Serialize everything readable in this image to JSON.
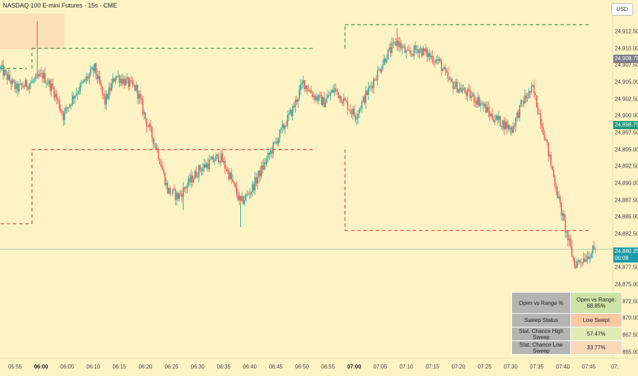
{
  "header": {
    "title": "NASDAQ 100 E-mini Futures · 15s · CME",
    "currency_button": "USD"
  },
  "price_axis": {
    "ticks": [
      "24,912.50",
      "24,910.00",
      "24,907.50",
      "24,905.00",
      "24,902.50",
      "24,900.00",
      "24,897.50",
      "24,895.00",
      "24,892.50",
      "24,890.00",
      "24,887.50",
      "24,885.00",
      "24,882.50",
      "24,877.50",
      "24,875.00",
      "24,872.50",
      "24,870.00",
      "24,867.50",
      "24,865.00"
    ],
    "last_price_label": "24,908.75",
    "green_label": "24,898.75",
    "current_price_label": "24,880.25",
    "countdown_label": "00:08",
    "colors": {
      "last": "#7c7c86",
      "green": "#1f9a7a",
      "current": "#1b9aa7"
    }
  },
  "time_axis": {
    "ticks": [
      {
        "label": "05:55",
        "bold": false
      },
      {
        "label": "06:00",
        "bold": true
      },
      {
        "label": "06:05",
        "bold": false
      },
      {
        "label": "06:10",
        "bold": false
      },
      {
        "label": "06:15",
        "bold": false
      },
      {
        "label": "06:20",
        "bold": false
      },
      {
        "label": "06:25",
        "bold": false
      },
      {
        "label": "06:30",
        "bold": false
      },
      {
        "label": "06:35",
        "bold": false
      },
      {
        "label": "06:40",
        "bold": false
      },
      {
        "label": "06:45",
        "bold": false
      },
      {
        "label": "06:50",
        "bold": false
      },
      {
        "label": "06:55",
        "bold": false
      },
      {
        "label": "07:00",
        "bold": true
      },
      {
        "label": "07:05",
        "bold": false
      },
      {
        "label": "07:10",
        "bold": false
      },
      {
        "label": "07:15",
        "bold": false
      },
      {
        "label": "07:20",
        "bold": false
      },
      {
        "label": "07:25",
        "bold": false
      },
      {
        "label": "07:30",
        "bold": false
      },
      {
        "label": "07:35",
        "bold": false
      },
      {
        "label": "07:40",
        "bold": false
      },
      {
        "label": "07:45",
        "bold": false
      },
      {
        "label": "07:",
        "bold": false
      }
    ]
  },
  "stats_table": {
    "rows": [
      {
        "label": "Open vs Range %",
        "value": "Open vs Range: 68.85%",
        "color": "#cfe3a6"
      },
      {
        "label": "Sweep Status",
        "value": "Low Swept",
        "color": "#f7c9a6"
      },
      {
        "label": "Stat. Chance High Sweep",
        "value": "57.47%",
        "color": "#dfeab4"
      },
      {
        "label": "Stat. Chance Low Sweep",
        "value": "33.77%",
        "color": "#f7d9b8"
      }
    ]
  },
  "chart_data": {
    "type": "candlestick",
    "title": "NASDAQ 100 E-mini Futures · 15s · CME",
    "y_range": [
      24863.5,
      24915.5
    ],
    "x_range": [
      "05:54",
      "07:50"
    ],
    "colors": {
      "up": "#26a69a",
      "down": "#ef5350",
      "high_level": "#2e9a3a",
      "low_level": "#e53935",
      "current_line": "#1b9aa7"
    },
    "current_price": 24880.25,
    "high_levels": [
      {
        "from": "05:54",
        "to": "05:59",
        "price": 24907.0
      },
      {
        "from": "06:00",
        "to": "06:54",
        "price": 24910.0
      },
      {
        "from": "07:00",
        "to": "07:47",
        "price": 24913.5
      }
    ],
    "low_levels": [
      {
        "from": "05:54",
        "to": "06:00",
        "price": 24884.0
      },
      {
        "from": "06:00",
        "to": "06:54",
        "price": 24895.0
      },
      {
        "from": "07:00",
        "to": "07:47",
        "price": 24883.0
      }
    ],
    "price_path": [
      [
        "05:54",
        24907.0
      ],
      [
        "05:57",
        24904.0
      ],
      [
        "06:00",
        24905.0
      ],
      [
        "06:02",
        24906.0
      ],
      [
        "06:04",
        24904.0
      ],
      [
        "06:06",
        24900.0
      ],
      [
        "06:08",
        24903.0
      ],
      [
        "06:10",
        24905.0
      ],
      [
        "06:12",
        24907.0
      ],
      [
        "06:14",
        24902.0
      ],
      [
        "06:16",
        24906.0
      ],
      [
        "06:18",
        24905.0
      ],
      [
        "06:20",
        24904.0
      ],
      [
        "06:22",
        24899.0
      ],
      [
        "06:24",
        24895.0
      ],
      [
        "06:26",
        24889.0
      ],
      [
        "06:28",
        24888.0
      ],
      [
        "06:30",
        24890.0
      ],
      [
        "06:32",
        24892.0
      ],
      [
        "06:34",
        24893.0
      ],
      [
        "06:36",
        24894.0
      ],
      [
        "06:38",
        24891.0
      ],
      [
        "06:40",
        24887.0
      ],
      [
        "06:42",
        24889.0
      ],
      [
        "06:44",
        24892.0
      ],
      [
        "06:46",
        24895.0
      ],
      [
        "06:48",
        24898.0
      ],
      [
        "06:50",
        24901.0
      ],
      [
        "06:52",
        24905.0
      ],
      [
        "06:54",
        24903.0
      ],
      [
        "06:56",
        24902.0
      ],
      [
        "06:58",
        24904.0
      ],
      [
        "07:00",
        24902.0
      ],
      [
        "07:02",
        24900.0
      ],
      [
        "07:04",
        24903.0
      ],
      [
        "07:06",
        24906.0
      ],
      [
        "07:08",
        24909.0
      ],
      [
        "07:10",
        24911.0
      ],
      [
        "07:12",
        24909.0
      ],
      [
        "07:14",
        24910.0
      ],
      [
        "07:16",
        24909.0
      ],
      [
        "07:18",
        24908.0
      ],
      [
        "07:20",
        24905.0
      ],
      [
        "07:22",
        24904.0
      ],
      [
        "07:24",
        24903.0
      ],
      [
        "07:26",
        24902.0
      ],
      [
        "07:28",
        24900.0
      ],
      [
        "07:30",
        24899.0
      ],
      [
        "07:32",
        24898.0
      ],
      [
        "07:34",
        24902.0
      ],
      [
        "07:36",
        24904.0
      ],
      [
        "07:38",
        24898.0
      ],
      [
        "07:40",
        24891.0
      ],
      [
        "07:42",
        24884.0
      ],
      [
        "07:44",
        24878.0
      ],
      [
        "07:46",
        24879.0
      ],
      [
        "07:48",
        24880.25
      ]
    ],
    "spikes": [
      {
        "time": "06:01",
        "high": 24914.0
      },
      {
        "time": "07:10",
        "high": 24913.0
      },
      {
        "time": "06:40",
        "low": 24883.5
      },
      {
        "time": "06:29",
        "low": 24886.0
      }
    ]
  }
}
